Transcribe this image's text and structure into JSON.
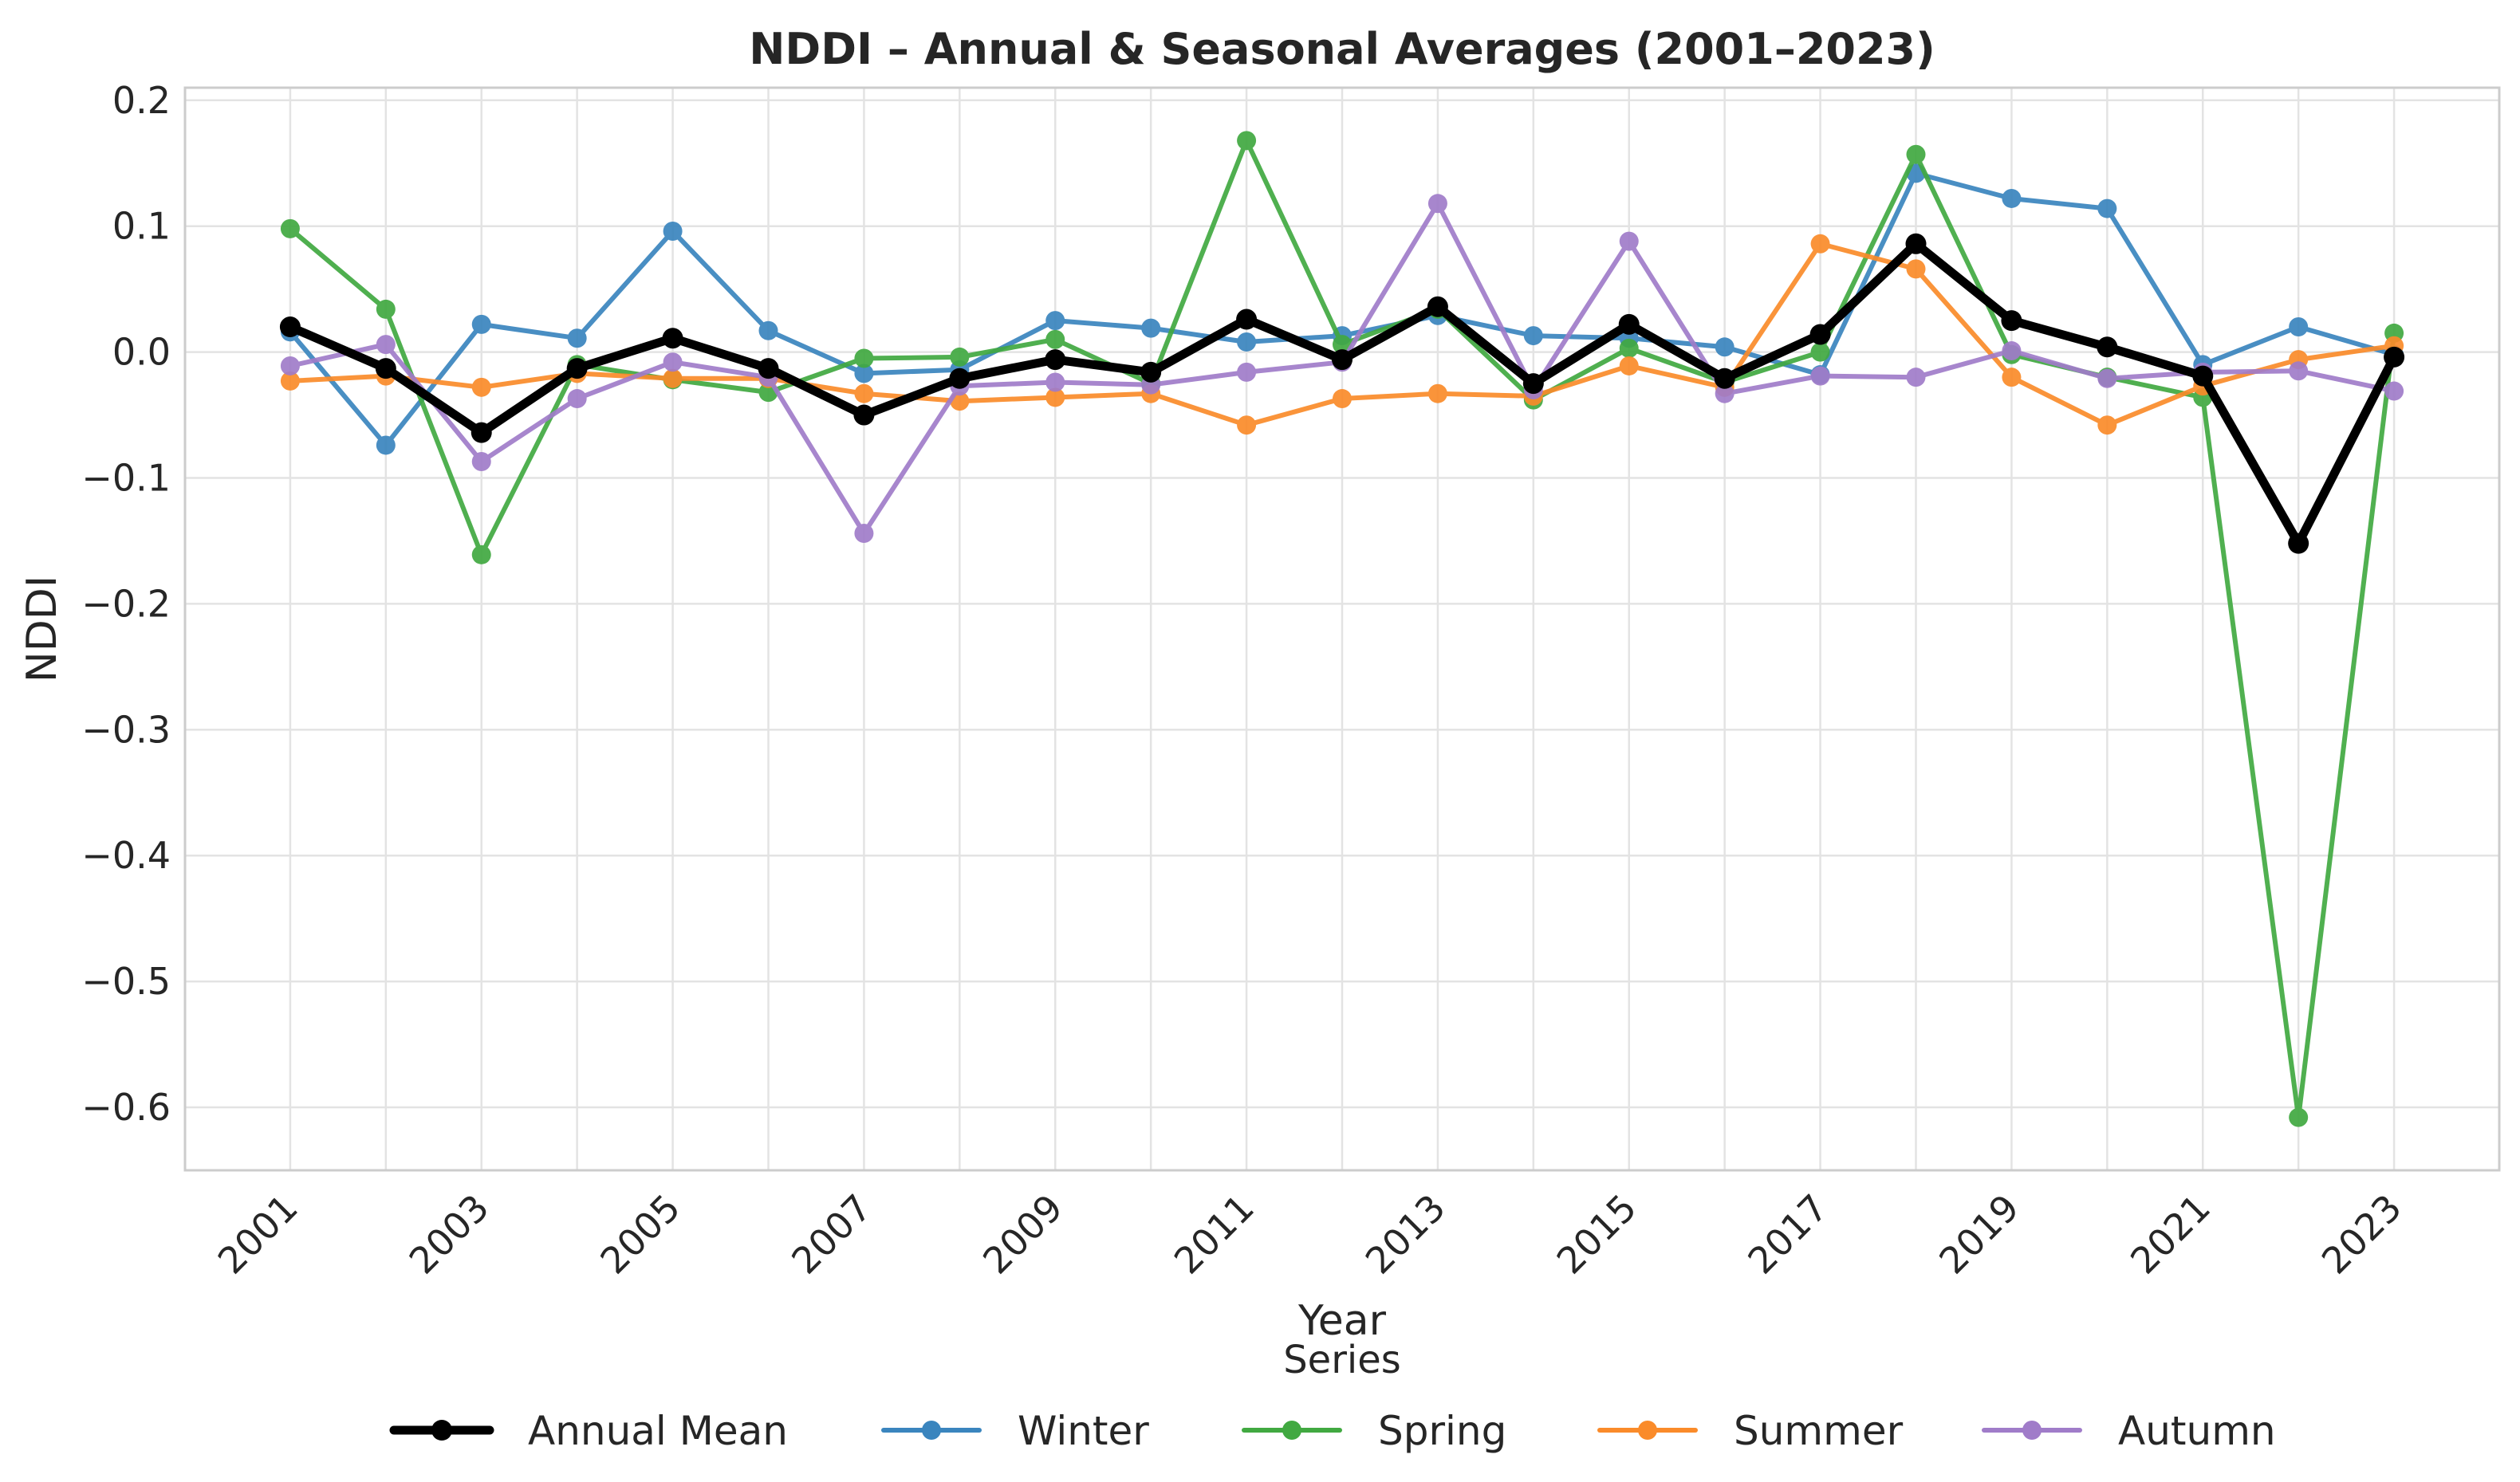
{
  "chart_data": {
    "type": "line",
    "title": "NDDI – Annual & Seasonal Averages (2001–2023)",
    "xlabel": "Year",
    "ylabel": "NDDI",
    "ylim": [
      -0.65,
      0.21
    ],
    "yticks": [
      0.2,
      0.1,
      0.0,
      -0.1,
      -0.2,
      -0.3,
      -0.4,
      -0.5,
      -0.6
    ],
    "ytick_labels": [
      "0.2",
      "0.1",
      "0.0",
      "−0.1",
      "−0.2",
      "−0.3",
      "−0.4",
      "−0.5",
      "−0.6"
    ],
    "xticks": [
      2001,
      2003,
      2005,
      2007,
      2009,
      2011,
      2013,
      2015,
      2017,
      2019,
      2021,
      2023
    ],
    "xtick_labels": [
      "2001",
      "2003",
      "2005",
      "2007",
      "2009",
      "2011",
      "2013",
      "2015",
      "2017",
      "2019",
      "2021",
      "2023"
    ],
    "grid": true,
    "legend_title": "Series",
    "legend_position": "bottom-center",
    "x": [
      2001,
      2002,
      2003,
      2004,
      2005,
      2006,
      2007,
      2008,
      2009,
      2010,
      2011,
      2012,
      2013,
      2014,
      2015,
      2016,
      2017,
      2018,
      2019,
      2020,
      2021,
      2022,
      2023
    ],
    "series": [
      {
        "name": "Winter",
        "color": "#3A85BE",
        "values": [
          0.016,
          -0.074,
          0.022,
          0.011,
          0.096,
          0.017,
          -0.017,
          -0.014,
          0.025,
          0.019,
          0.008,
          0.013,
          0.029,
          0.013,
          0.011,
          0.004,
          -0.018,
          0.142,
          0.122,
          0.114,
          -0.01,
          0.02,
          -0.002
        ]
      },
      {
        "name": "Spring",
        "color": "#41A941",
        "values": [
          0.098,
          0.034,
          -0.161,
          -0.01,
          -0.022,
          -0.032,
          -0.005,
          -0.004,
          0.01,
          -0.025,
          0.168,
          0.006,
          0.034,
          -0.038,
          0.003,
          -0.024,
          0.0,
          0.157,
          -0.002,
          -0.02,
          -0.036,
          -0.608,
          0.015
        ]
      },
      {
        "name": "Summer",
        "color": "#FA8B2A",
        "values": [
          -0.023,
          -0.019,
          -0.028,
          -0.017,
          -0.021,
          -0.021,
          -0.033,
          -0.039,
          -0.036,
          -0.033,
          -0.058,
          -0.037,
          -0.033,
          -0.035,
          -0.011,
          -0.028,
          0.086,
          0.066,
          -0.02,
          -0.058,
          -0.027,
          -0.006,
          0.005
        ]
      },
      {
        "name": "Autumn",
        "color": "#A07CC9",
        "values": [
          -0.011,
          0.006,
          -0.087,
          -0.037,
          -0.008,
          -0.02,
          -0.144,
          -0.027,
          -0.024,
          -0.026,
          -0.016,
          -0.008,
          0.118,
          -0.03,
          0.088,
          -0.033,
          -0.019,
          -0.02,
          0.001,
          -0.021,
          -0.016,
          -0.015,
          -0.031
        ]
      },
      {
        "name": "Annual Mean",
        "color": "#000000",
        "values": [
          0.02,
          -0.013,
          -0.064,
          -0.013,
          0.011,
          -0.013,
          -0.05,
          -0.021,
          -0.006,
          -0.016,
          0.026,
          -0.006,
          0.036,
          -0.025,
          0.022,
          -0.021,
          0.014,
          0.086,
          0.025,
          0.004,
          -0.019,
          -0.152,
          -0.004
        ]
      }
    ],
    "legend_order": [
      "Annual Mean",
      "Winter",
      "Spring",
      "Summer",
      "Autumn"
    ]
  },
  "colors": {
    "grid": "#E3E3E3",
    "frame": "#CCCCCC",
    "text": "#262626"
  }
}
